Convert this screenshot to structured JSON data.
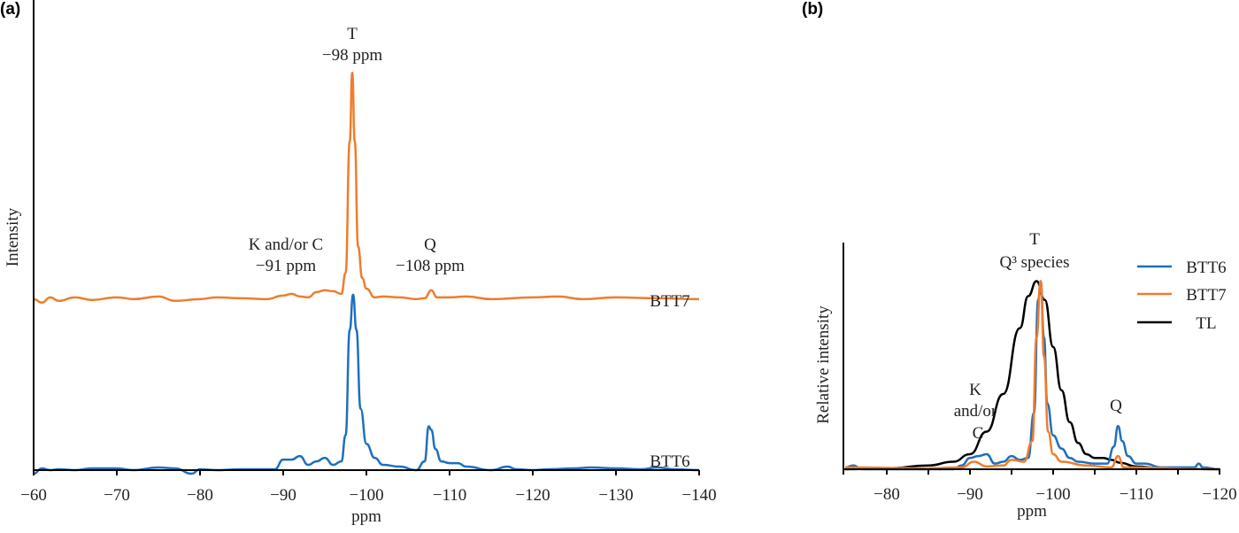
{
  "chart_data": [
    {
      "panel_label": "(a)",
      "type": "line",
      "xlabel": "ppm",
      "ylabel": "Intensity",
      "xlim": [
        -60,
        -140
      ],
      "ylim": [
        0,
        2.67
      ],
      "x_ticks": [
        -60,
        -70,
        -80,
        -90,
        -100,
        -110,
        -120,
        -130,
        -140
      ],
      "x_tick_labels": [
        "−60",
        "−70",
        "−80",
        "−90",
        "−100",
        "−110",
        "−120",
        "−130",
        "−140"
      ],
      "grid": false,
      "colors": {
        "BTT6": "#1f6fbd",
        "BTT7": "#f07c2c"
      },
      "annotations": {
        "t_peak": [
          "T",
          "−98 ppm"
        ],
        "kc_peak": [
          "K and/or C",
          "−91 ppm"
        ],
        "q_peak": [
          "Q",
          "−108 ppm"
        ]
      },
      "series": [
        {
          "name": "BTT7",
          "offset": 0.975,
          "x": [
            -60,
            -61,
            -62,
            -63,
            -65,
            -67,
            -70,
            -72,
            -75,
            -77,
            -80,
            -82,
            -85,
            -88,
            -90,
            -91,
            -92,
            -93,
            -94,
            -95,
            -96,
            -97,
            -97.5,
            -98,
            -98.3,
            -98.6,
            -99,
            -99.5,
            -100,
            -101,
            -102,
            -104,
            -106,
            -107,
            -107.8,
            -108.5,
            -110,
            -112,
            -115,
            -120,
            -123,
            -126,
            -130,
            -135,
            -140
          ],
          "y": [
            0,
            -0.02,
            0.01,
            -0.01,
            0.01,
            -0.005,
            0.01,
            0,
            0.015,
            -0.01,
            0,
            0.01,
            0.005,
            0,
            0.02,
            0.03,
            0.015,
            0.01,
            0.04,
            0.05,
            0.045,
            0.03,
            0.15,
            0.9,
            1.29,
            0.9,
            0.3,
            0.12,
            0.06,
            0.01,
            0.015,
            0.01,
            0,
            0.005,
            0.05,
            0.01,
            0.01,
            0.015,
            0,
            0.01,
            0.015,
            0,
            0.01,
            0.005,
            0
          ]
        },
        {
          "name": "BTT6",
          "offset": 0,
          "x": [
            -60,
            -61,
            -62,
            -63,
            -65,
            -67,
            -70,
            -72,
            -75,
            -77,
            -79,
            -80,
            -82,
            -85,
            -88,
            -89,
            -90,
            -91,
            -92,
            -93,
            -94,
            -95,
            -96,
            -97,
            -97.5,
            -98,
            -98.4,
            -98.8,
            -99.3,
            -100,
            -101,
            -102,
            -104,
            -106,
            -107,
            -107.5,
            -107.8,
            -108.3,
            -109,
            -110,
            -111,
            -112,
            -115,
            -117,
            -118,
            -120,
            -122,
            -125,
            -127,
            -130,
            -133,
            -135,
            -137,
            -140
          ],
          "y": [
            -0.02,
            0.01,
            0,
            0.005,
            0,
            0.01,
            0.01,
            0,
            0.015,
            0.01,
            -0.02,
            0.005,
            0,
            0.005,
            0.005,
            0.005,
            0.06,
            0.06,
            0.08,
            0.03,
            0.05,
            0.07,
            0.03,
            0.05,
            0.2,
            0.8,
            1.0,
            0.8,
            0.35,
            0.15,
            0.07,
            0.03,
            0.02,
            0,
            0.05,
            0.25,
            0.23,
            0.12,
            0.05,
            0.04,
            0.04,
            0.02,
            0,
            0.02,
            0.005,
            0,
            0.005,
            0.01,
            0.015,
            0.01,
            0.005,
            0.015,
            0.005,
            0
          ]
        }
      ]
    },
    {
      "panel_label": "(b)",
      "type": "line",
      "xlabel": "ppm",
      "ylabel": "Relative intensity",
      "xlim": [
        -75,
        -120
      ],
      "ylim": [
        0,
        1.2
      ],
      "x_ticks": [
        -80,
        -85,
        -90,
        -95,
        -100,
        -105,
        -110,
        -115,
        -120
      ],
      "x_tick_labels": [
        "−80",
        "",
        "−90",
        "",
        "−100",
        "",
        "−110",
        "",
        "−120"
      ],
      "grid": false,
      "legend": {
        "position": "top-right",
        "entries": [
          "BTT6",
          "BTT7",
          "TL"
        ]
      },
      "colors": {
        "BTT6": "#1f6fbd",
        "BTT7": "#f07c2c",
        "TL": "#000000"
      },
      "annotations": {
        "t_peak": [
          "T",
          "Q³ species"
        ],
        "kc_peak": [
          "K",
          "and/or",
          "C"
        ],
        "q_peak": [
          "Q"
        ]
      },
      "series": [
        {
          "name": "TL",
          "x": [
            -75,
            -80,
            -85,
            -88,
            -90,
            -92,
            -94,
            -96,
            -97,
            -98,
            -99,
            -100,
            -101,
            -102,
            -103,
            -104,
            -105,
            -106,
            -107,
            -108,
            -110,
            -113,
            -120
          ],
          "y": [
            0,
            0.005,
            0.02,
            0.04,
            0.08,
            0.2,
            0.4,
            0.75,
            0.92,
            1.0,
            0.9,
            0.65,
            0.42,
            0.25,
            0.14,
            0.08,
            0.06,
            0.06,
            0.05,
            0.035,
            0.015,
            0.005,
            0
          ]
        },
        {
          "name": "BTT6",
          "x": [
            -75,
            -76,
            -77,
            -85,
            -88,
            -89,
            -90,
            -91,
            -92,
            -93,
            -94,
            -95,
            -96,
            -97,
            -97.7,
            -98.2,
            -98.5,
            -98.9,
            -99.3,
            -100,
            -101,
            -102,
            -103,
            -105,
            -106.5,
            -107.3,
            -107.8,
            -108.3,
            -109,
            -110,
            -111,
            -113,
            -117,
            -117.5,
            -118,
            -120
          ],
          "y": [
            0.01,
            0.02,
            0,
            0,
            0,
            0.02,
            0.06,
            0.07,
            0.08,
            0.03,
            0.04,
            0.07,
            0.05,
            0.06,
            0.3,
            0.9,
            1.0,
            0.7,
            0.35,
            0.18,
            0.11,
            0.06,
            0.04,
            0.03,
            0.03,
            0.12,
            0.23,
            0.15,
            0.07,
            0.03,
            0.03,
            0.01,
            0.01,
            0.03,
            0.01,
            0
          ]
        },
        {
          "name": "BTT7",
          "x": [
            -75,
            -85,
            -89,
            -90.5,
            -92,
            -94,
            -95,
            -96.5,
            -97.5,
            -98,
            -98.5,
            -98.9,
            -99.4,
            -100,
            -101,
            -104,
            -107,
            -107.8,
            -108.5,
            -120
          ],
          "y": [
            0.01,
            0.005,
            0.01,
            0.04,
            0.015,
            0.02,
            0.05,
            0.04,
            0.15,
            0.7,
            1.0,
            0.6,
            0.2,
            0.08,
            0.04,
            0.02,
            0.01,
            0.07,
            0.01,
            0
          ]
        }
      ]
    }
  ]
}
